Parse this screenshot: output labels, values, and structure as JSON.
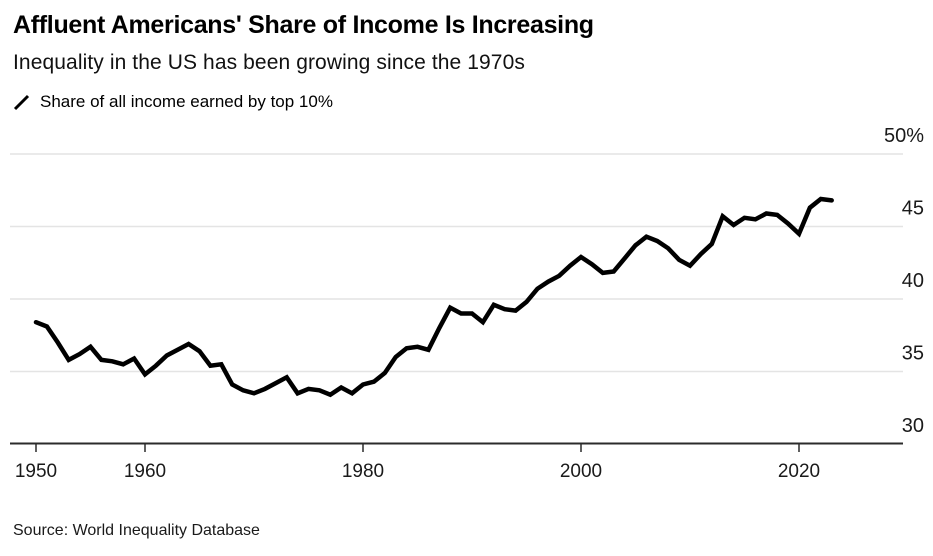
{
  "header": {
    "title": "Affluent Americans' Share of Income Is Increasing",
    "subtitle": "Inequality in the US has been growing since the 1970s"
  },
  "legend": {
    "label": "Share of all income earned by top 10%"
  },
  "source": "Source: World Inequality Database",
  "colors": {
    "line": "#000000",
    "grid": "#e4e4e4",
    "axis": "#2b2b2b",
    "text": "#1a1a1a"
  },
  "chart_data": {
    "type": "line",
    "title": "Affluent Americans' Share of Income Is Increasing",
    "subtitle": "Inequality in the US has been growing since the 1970s",
    "xlabel": "",
    "ylabel": "Share of all income earned by top 10% (%)",
    "grid": "horizontal",
    "legend_position": "top-left",
    "xlim": [
      1950,
      2023
    ],
    "ylim": [
      30,
      50
    ],
    "x_ticks": [
      {
        "value": 1950,
        "label": "1950"
      },
      {
        "value": 1960,
        "label": "1960"
      },
      {
        "value": 1980,
        "label": "1980"
      },
      {
        "value": 2000,
        "label": "2000"
      },
      {
        "value": 2020,
        "label": "2020"
      }
    ],
    "y_ticks": [
      {
        "value": 50,
        "label": "50%"
      },
      {
        "value": 45,
        "label": "45"
      },
      {
        "value": 40,
        "label": "40"
      },
      {
        "value": 35,
        "label": "35"
      },
      {
        "value": 30,
        "label": "30"
      }
    ],
    "series": [
      {
        "name": "Share of all income earned by top 10%",
        "color": "#000000",
        "x": [
          1950,
          1951,
          1952,
          1953,
          1954,
          1955,
          1956,
          1957,
          1958,
          1959,
          1960,
          1961,
          1962,
          1963,
          1964,
          1965,
          1966,
          1967,
          1968,
          1969,
          1970,
          1971,
          1972,
          1973,
          1974,
          1975,
          1976,
          1977,
          1978,
          1979,
          1980,
          1981,
          1982,
          1983,
          1984,
          1985,
          1986,
          1987,
          1988,
          1989,
          1990,
          1991,
          1992,
          1993,
          1994,
          1995,
          1996,
          1997,
          1998,
          1999,
          2000,
          2001,
          2002,
          2003,
          2004,
          2005,
          2006,
          2007,
          2008,
          2009,
          2010,
          2011,
          2012,
          2013,
          2014,
          2015,
          2016,
          2017,
          2018,
          2019,
          2020,
          2021,
          2022,
          2023
        ],
        "values": [
          38.4,
          38.1,
          37.0,
          35.8,
          36.2,
          36.7,
          35.8,
          35.7,
          35.5,
          35.9,
          34.8,
          35.4,
          36.1,
          36.5,
          36.9,
          36.4,
          35.4,
          35.5,
          34.1,
          33.7,
          33.5,
          33.8,
          34.2,
          34.6,
          33.5,
          33.8,
          33.7,
          33.4,
          33.9,
          33.5,
          34.1,
          34.3,
          34.9,
          36.0,
          36.6,
          36.7,
          36.5,
          38.0,
          39.4,
          39.0,
          39.0,
          38.4,
          39.6,
          39.3,
          39.2,
          39.8,
          40.7,
          41.2,
          41.6,
          42.3,
          42.9,
          42.4,
          41.8,
          41.9,
          42.8,
          43.7,
          44.3,
          44.0,
          43.5,
          42.7,
          42.3,
          43.1,
          43.8,
          45.7,
          45.1,
          45.6,
          45.5,
          45.9,
          45.8,
          45.2,
          44.5,
          46.3,
          46.9,
          46.8
        ]
      }
    ]
  }
}
